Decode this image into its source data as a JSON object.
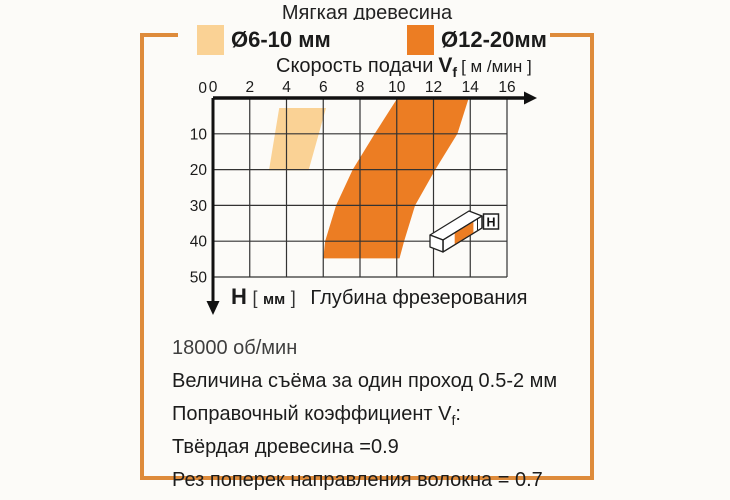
{
  "legend": {
    "items": [
      {
        "label": "Ø6-10 мм",
        "color": "#FAD295"
      },
      {
        "label": "Ø12-20мм",
        "color": "#EC7D23"
      }
    ]
  },
  "chart_data": {
    "type": "area",
    "title": "Мягкая древесина",
    "x_axis": {
      "title": "Скорость подачи",
      "variable": "V",
      "variable_sub": "f",
      "units": "[ м /мин ]",
      "ticks": [
        0,
        2,
        4,
        6,
        8,
        10,
        12,
        14,
        16
      ],
      "range": [
        0,
        16
      ]
    },
    "y_axis": {
      "variable": "H",
      "bracket_open": "[",
      "units": "мм",
      "bracket_close": "]",
      "title": "Глубина фрезерования",
      "ticks": [
        0,
        10,
        20,
        30,
        40,
        50
      ],
      "range": [
        0,
        50
      ]
    },
    "series": [
      {
        "name": "Ø6-10 мм",
        "color": "#FAD295",
        "polygon": [
          [
            3.6,
            2.8
          ],
          [
            6.15,
            2.8
          ],
          [
            5.2,
            20.2
          ],
          [
            3.05,
            20.2
          ]
        ]
      },
      {
        "name": "Ø12-20мм",
        "color": "#EC7D23",
        "polygon": [
          [
            10,
            0.3
          ],
          [
            13.9,
            0.3
          ],
          [
            13.3,
            10
          ],
          [
            12.1,
            20
          ],
          [
            11.0,
            30
          ],
          [
            10.4,
            40
          ],
          [
            10.15,
            44.8
          ],
          [
            6.0,
            44.8
          ],
          [
            6.1,
            40
          ],
          [
            6.7,
            30
          ],
          [
            7.6,
            20
          ],
          [
            8.8,
            10
          ]
        ]
      }
    ],
    "inset_depth_label": "H"
  },
  "notes": [
    {
      "text": "18000 об/мин",
      "sub": "",
      "tail": ""
    },
    {
      "text": "Величина съёма за один проход 0.5-2 мм",
      "sub": "",
      "tail": ""
    },
    {
      "text": "Поправочный коэффициент V",
      "sub": "f",
      "tail": ":"
    },
    {
      "text": "Твёрдая древесина =0.9",
      "sub": "",
      "tail": ""
    },
    {
      "text": "Рез поперек направления волокна = 0.7",
      "sub": "",
      "tail": ""
    }
  ],
  "frame_color": "#DE8B3B"
}
